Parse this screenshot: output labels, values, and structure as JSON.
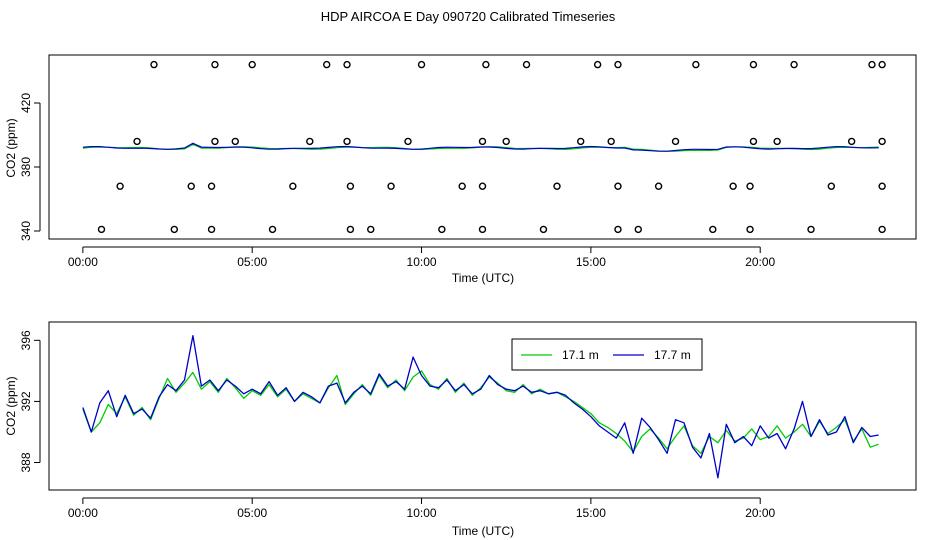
{
  "title": "HDP AIRCOA E  Day 090720  Calibrated Timeseries",
  "colors": {
    "green": "#00cc00",
    "blue": "#0000cc",
    "axis": "#000000",
    "background": "#ffffff"
  },
  "chart_data": [
    {
      "type": "line",
      "title": "",
      "xlabel": "Time (UTC)",
      "ylabel": "CO2 (ppm)",
      "xlim": [
        -1.0,
        24.6
      ],
      "ylim": [
        335,
        450
      ],
      "x_ticks": [
        0,
        5,
        10,
        15,
        20
      ],
      "x_tick_labels": [
        "00:00",
        "05:00",
        "10:00",
        "15:00",
        "20:00"
      ],
      "y_ticks": [
        340,
        380,
        420
      ],
      "y_tick_labels": [
        "340",
        "380",
        "420"
      ],
      "calibration_marker_levels": [
        341,
        368,
        396,
        444
      ],
      "calibration_marker_times": [
        [
          0.55,
          2.7,
          3.8,
          5.6,
          7.9,
          8.5,
          10.6,
          11.8,
          13.6,
          15.8,
          16.4,
          18.6,
          19.7,
          21.5,
          23.6
        ],
        [
          1.1,
          3.2,
          3.8,
          6.2,
          7.9,
          9.1,
          11.2,
          11.8,
          14.0,
          15.8,
          17.0,
          19.2,
          19.7,
          22.1,
          23.6
        ],
        [
          1.6,
          3.9,
          4.5,
          6.7,
          7.8,
          9.6,
          11.8,
          12.5,
          14.7,
          15.6,
          17.5,
          19.8,
          20.5,
          22.7,
          23.6
        ],
        [
          2.1,
          3.9,
          5.0,
          7.2,
          7.8,
          10.0,
          11.9,
          13.1,
          15.2,
          15.8,
          18.1,
          19.8,
          21.0,
          23.3,
          23.6
        ]
      ],
      "series": [
        {
          "name": "17.1 m",
          "color": "#00cc00",
          "level": 391.8
        },
        {
          "name": "17.7 m",
          "color": "#0000cc",
          "level": 391.9
        }
      ]
    },
    {
      "type": "line",
      "title": "",
      "xlabel": "Time (UTC)",
      "ylabel": "CO2 (ppm)",
      "xlim": [
        -1.0,
        24.6
      ],
      "ylim": [
        386.2,
        397.2
      ],
      "x_ticks": [
        0,
        5,
        10,
        15,
        20
      ],
      "x_tick_labels": [
        "00:00",
        "05:00",
        "10:00",
        "15:00",
        "20:00"
      ],
      "y_ticks": [
        388,
        392,
        396
      ],
      "y_tick_labels": [
        "388",
        "392",
        "396"
      ],
      "legend": {
        "placement": "top-right",
        "entries": [
          "17.1 m",
          "17.7 m"
        ]
      },
      "series": [
        {
          "name": "17.1 m",
          "color": "#00cc00",
          "x": [
            0.0,
            0.25,
            0.5,
            0.75,
            1.0,
            1.25,
            1.5,
            1.75,
            2.0,
            2.25,
            2.5,
            2.75,
            3.0,
            3.25,
            3.5,
            3.75,
            4.0,
            4.25,
            4.5,
            4.75,
            5.0,
            5.25,
            5.5,
            5.75,
            6.0,
            6.25,
            6.5,
            6.75,
            7.0,
            7.25,
            7.5,
            7.75,
            8.0,
            8.25,
            8.5,
            8.75,
            9.0,
            9.25,
            9.5,
            9.75,
            10.0,
            10.25,
            10.5,
            10.75,
            11.0,
            11.25,
            11.5,
            11.75,
            12.0,
            12.25,
            12.5,
            12.75,
            13.0,
            13.25,
            13.5,
            13.75,
            14.0,
            14.25,
            14.5,
            14.75,
            15.0,
            15.25,
            15.5,
            15.75,
            16.0,
            16.25,
            16.5,
            16.75,
            17.0,
            17.25,
            17.5,
            17.75,
            18.0,
            18.25,
            18.5,
            18.75,
            19.0,
            19.25,
            19.5,
            19.75,
            20.0,
            20.25,
            20.5,
            20.75,
            21.0,
            21.25,
            21.5,
            21.75,
            22.0,
            22.25,
            22.5,
            22.75,
            23.0,
            23.25,
            23.5
          ],
          "values": [
            391.5,
            390.0,
            390.6,
            391.8,
            391.2,
            392.3,
            391.1,
            391.6,
            390.8,
            392.2,
            393.5,
            392.6,
            393.2,
            393.9,
            392.8,
            393.3,
            392.6,
            393.5,
            392.9,
            392.2,
            392.7,
            392.4,
            393.1,
            392.3,
            392.8,
            392.0,
            392.5,
            392.2,
            391.9,
            392.9,
            393.7,
            391.8,
            392.5,
            393.1,
            392.4,
            393.7,
            392.9,
            393.4,
            392.7,
            393.6,
            394.0,
            393.1,
            392.8,
            393.5,
            392.6,
            393.2,
            392.4,
            392.9,
            393.6,
            393.2,
            392.7,
            392.6,
            393.1,
            392.5,
            392.8,
            392.5,
            392.6,
            392.3,
            392.0,
            391.6,
            391.2,
            390.6,
            390.3,
            389.9,
            389.4,
            388.7,
            389.7,
            390.2,
            389.6,
            388.9,
            389.7,
            390.4,
            389.1,
            388.6,
            389.7,
            389.3,
            390.1,
            389.4,
            389.6,
            390.2,
            389.5,
            389.7,
            390.4,
            389.6,
            390.0,
            390.5,
            389.7,
            390.7,
            389.9,
            390.3,
            390.8,
            389.4,
            390.2,
            389.0,
            389.2
          ]
        },
        {
          "name": "17.7 m",
          "color": "#0000cc",
          "x": [
            0.0,
            0.25,
            0.5,
            0.75,
            1.0,
            1.25,
            1.5,
            1.75,
            2.0,
            2.25,
            2.5,
            2.75,
            3.0,
            3.25,
            3.5,
            3.75,
            4.0,
            4.25,
            4.5,
            4.75,
            5.0,
            5.25,
            5.5,
            5.75,
            6.0,
            6.25,
            6.5,
            6.75,
            7.0,
            7.25,
            7.5,
            7.75,
            8.0,
            8.25,
            8.5,
            8.75,
            9.0,
            9.25,
            9.5,
            9.75,
            10.0,
            10.25,
            10.5,
            10.75,
            11.0,
            11.25,
            11.5,
            11.75,
            12.0,
            12.25,
            12.5,
            12.75,
            13.0,
            13.25,
            13.5,
            13.75,
            14.0,
            14.25,
            14.5,
            14.75,
            15.0,
            15.25,
            15.5,
            15.75,
            16.0,
            16.25,
            16.5,
            16.75,
            17.0,
            17.25,
            17.5,
            17.75,
            18.0,
            18.25,
            18.5,
            18.75,
            19.0,
            19.25,
            19.5,
            19.75,
            20.0,
            20.25,
            20.5,
            20.75,
            21.0,
            21.25,
            21.5,
            21.75,
            22.0,
            22.25,
            22.5,
            22.75,
            23.0,
            23.25,
            23.5
          ],
          "values": [
            391.6,
            390.0,
            391.9,
            392.7,
            391.0,
            392.4,
            391.2,
            391.5,
            390.9,
            392.3,
            393.1,
            392.7,
            393.4,
            396.3,
            393.0,
            393.4,
            392.7,
            393.4,
            393.0,
            392.5,
            392.8,
            392.5,
            393.3,
            392.4,
            392.9,
            392.0,
            392.6,
            392.3,
            391.9,
            393.0,
            393.2,
            391.9,
            392.6,
            393.0,
            392.5,
            393.8,
            393.0,
            393.3,
            392.8,
            394.9,
            393.7,
            393.0,
            392.9,
            393.4,
            392.7,
            393.1,
            392.5,
            392.8,
            393.7,
            393.1,
            392.8,
            392.7,
            393.0,
            392.6,
            392.7,
            392.5,
            392.6,
            392.4,
            391.9,
            391.5,
            391.0,
            390.4,
            390.0,
            389.6,
            390.6,
            388.6,
            390.9,
            390.3,
            389.5,
            388.6,
            390.8,
            390.6,
            389.0,
            388.3,
            389.9,
            387.0,
            390.5,
            389.3,
            389.7,
            389.1,
            390.4,
            389.6,
            389.9,
            388.9,
            390.2,
            392.0,
            389.7,
            390.8,
            389.8,
            390.0,
            391.0,
            389.3,
            390.3,
            389.7,
            389.8
          ]
        }
      ]
    }
  ]
}
